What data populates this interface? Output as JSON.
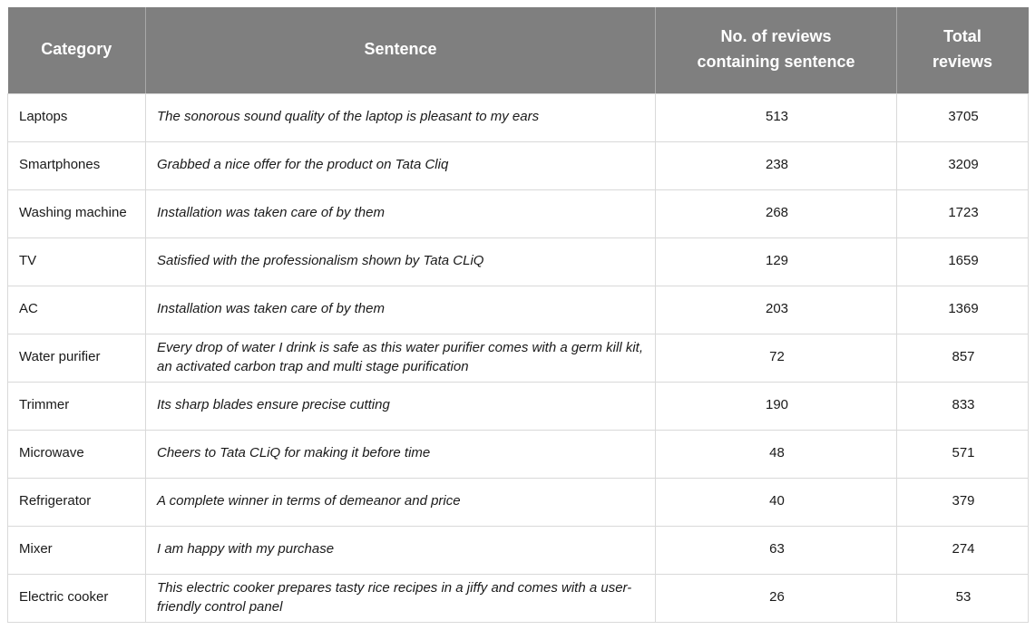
{
  "table": {
    "headers": {
      "category": "Category",
      "sentence": "Sentence",
      "count": "No. of reviews\ncontaining sentence",
      "total": "Total\nreviews"
    },
    "rows": [
      {
        "category": "Laptops",
        "sentence": "The sonorous sound quality of the laptop is pleasant to my ears",
        "count": "513",
        "total": "3705"
      },
      {
        "category": "Smartphones",
        "sentence": "Grabbed a nice offer for the product on Tata Cliq",
        "count": "238",
        "total": "3209"
      },
      {
        "category": "Washing machine",
        "sentence": "Installation was taken care of by them",
        "count": "268",
        "total": "1723"
      },
      {
        "category": "TV",
        "sentence": "Satisfied with the professionalism shown by Tata CLiQ",
        "count": "129",
        "total": "1659"
      },
      {
        "category": "AC",
        "sentence": "Installation was taken care of by them",
        "count": "203",
        "total": "1369"
      },
      {
        "category": "Water purifier",
        "sentence": "Every drop of water I drink is safe as this water purifier comes with a germ kill kit, an activated carbon trap and multi stage purification",
        "count": "72",
        "total": "857"
      },
      {
        "category": "Trimmer",
        "sentence": "Its sharp blades ensure precise cutting",
        "count": "190",
        "total": "833"
      },
      {
        "category": "Microwave",
        "sentence": "Cheers to Tata CLiQ for making it before time",
        "count": "48",
        "total": "571"
      },
      {
        "category": "Refrigerator",
        "sentence": "A complete winner in terms of demeanor and price",
        "count": "40",
        "total": "379"
      },
      {
        "category": "Mixer",
        "sentence": "I am happy with my purchase",
        "count": "63",
        "total": "274"
      },
      {
        "category": "Electric cooker",
        "sentence": "This electric cooker prepares tasty rice recipes in a jiffy and comes with a user-friendly control panel",
        "count": "26",
        "total": "53"
      }
    ]
  },
  "colors": {
    "header_bg": "#7f7f7f",
    "header_text": "#ffffff",
    "body_border": "#d9d9d9",
    "body_text": "#1a1a1a"
  }
}
